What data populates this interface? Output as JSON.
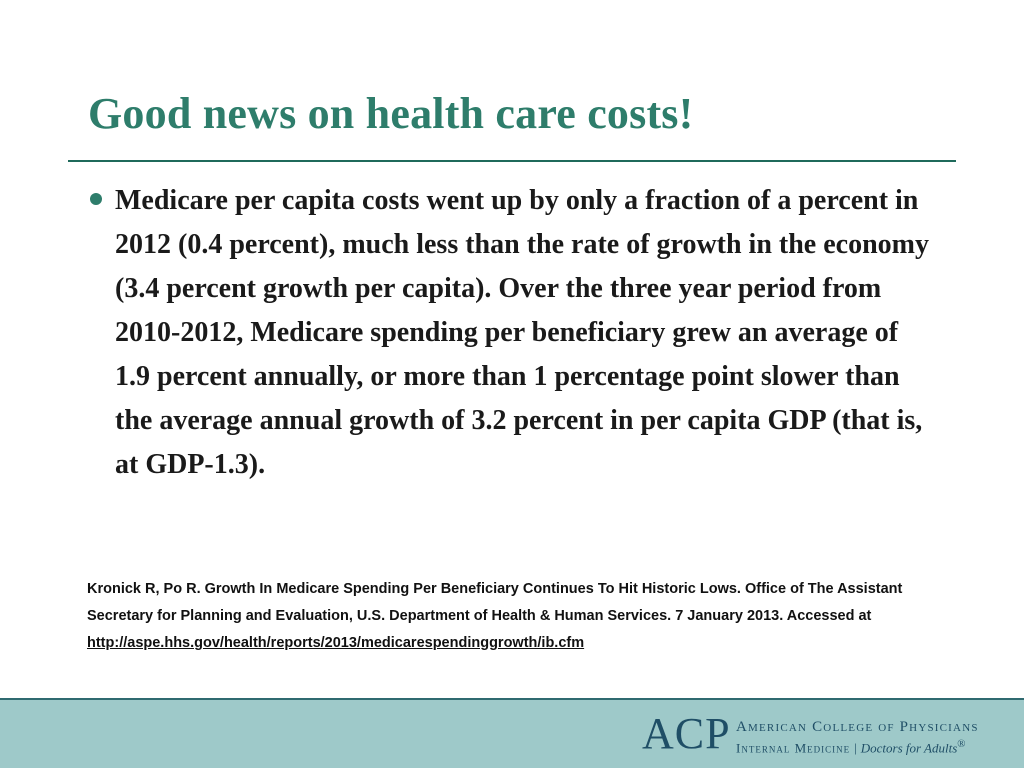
{
  "slide": {
    "title": "Good news on health care costs!",
    "bullet": "Medicare per capita costs went up by only a fraction of a percent in 2012 (0.4 percent), much less than the rate of growth in the economy (3.4 percent growth per capita). Over the three year period from 2010-2012, Medicare spending per beneficiary grew an average of 1.9 percent annually, or more than 1 percentage point slower than the average annual growth of 3.2 percent in per capita GDP (that is, at GDP-1.3).",
    "citation_text": "Kronick R, Po R. Growth In Medicare Spending Per Beneficiary Continues To Hit Historic Lows. Office of The Assistant Secretary for Planning and Evaluation, U.S. Department of Health & Human Services. 7 January 2013. Accessed at ",
    "citation_link": "http://aspe.hhs.gov/health/reports/2013/medicarespendinggrowth/ib.cfm"
  },
  "footer": {
    "logo_acronym": "ACP",
    "logo_name": "American College of Physicians",
    "logo_tagline": "Internal Medicine",
    "logo_separator": "|",
    "logo_motto": "Doctors for Adults",
    "logo_mark": "®"
  },
  "colors": {
    "title": "#2e7d6b",
    "rule": "#1f6a5b",
    "footer_band": "#9ec9c9",
    "logo": "#1f4e66"
  }
}
